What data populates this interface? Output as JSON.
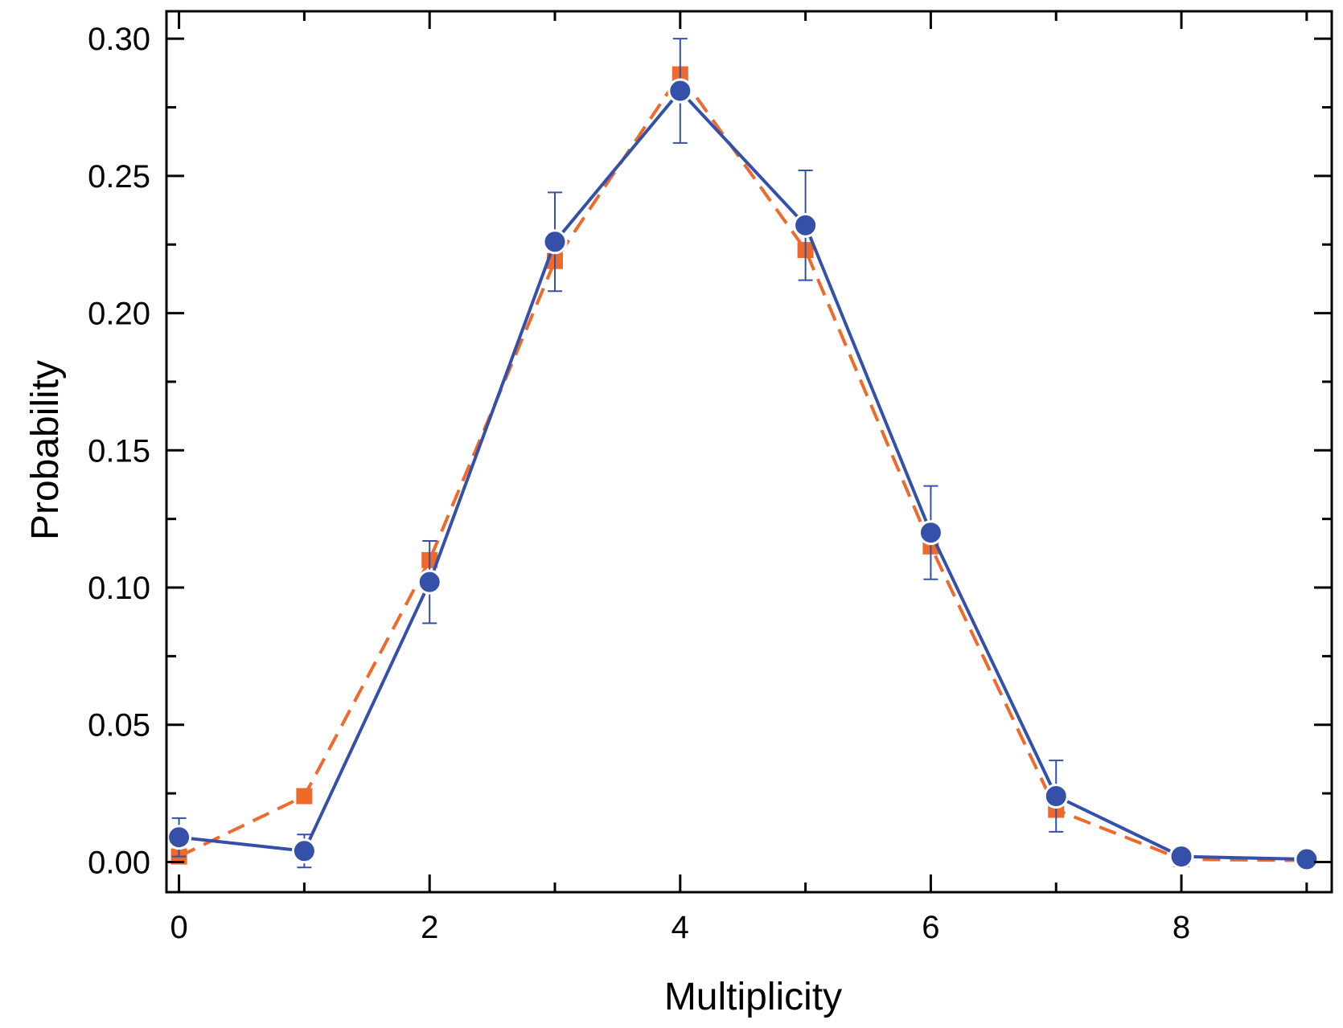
{
  "chart_data": {
    "type": "line",
    "xlabel": "Multiplicity",
    "ylabel": "Probability",
    "xlim": [
      -0.1,
      9.2
    ],
    "ylim": [
      -0.011,
      0.31
    ],
    "x_ticks": [
      0,
      2,
      4,
      6,
      8
    ],
    "x_tick_labels": [
      "0",
      "2",
      "4",
      "6",
      "8"
    ],
    "y_ticks": [
      0.0,
      0.05,
      0.1,
      0.15,
      0.2,
      0.25,
      0.3
    ],
    "y_tick_labels": [
      "0.00",
      "0.05",
      "0.10",
      "0.15",
      "0.20",
      "0.25",
      "0.30"
    ],
    "grid": false,
    "series": [
      {
        "x": [
          0,
          1,
          2,
          3,
          4,
          5,
          6,
          7,
          8,
          9
        ],
        "values": [
          0.002,
          0.024,
          0.11,
          0.219,
          0.287,
          0.223,
          0.115,
          0.019,
          0.001,
          0.0005
        ],
        "color": "#ef6a2a",
        "marker": "square",
        "line_style": "dashed"
      },
      {
        "x": [
          0,
          1,
          2,
          3,
          4,
          5,
          6,
          7,
          8,
          9
        ],
        "values": [
          0.009,
          0.004,
          0.102,
          0.226,
          0.281,
          0.232,
          0.12,
          0.024,
          0.002,
          0.001
        ],
        "errors": [
          0.007,
          0.006,
          0.015,
          0.018,
          0.019,
          0.02,
          0.017,
          0.013,
          0.001,
          0.001
        ],
        "color": "#3450a8",
        "marker": "circle",
        "line_style": "solid"
      }
    ]
  }
}
